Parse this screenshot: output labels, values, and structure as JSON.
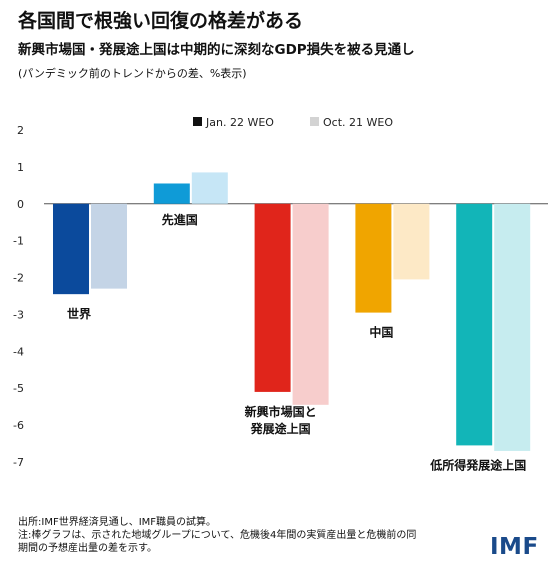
{
  "header": {
    "title": "各国間で根強い回復の格差がある",
    "subtitle": "新興市場国・発展途上国は中期的に深刻なGDP損失を被る見通し",
    "note": "(パンデミック前のトレンドからの差、%表示)"
  },
  "chart_data": {
    "type": "bar",
    "title": "各国間で根強い回復の格差がある",
    "subtitle": "新興市場国・発展途上国は中期的に深刻なGDP損失を被る見通し",
    "ylabel": "",
    "ylim": [
      -7,
      2
    ],
    "yticks": [
      2,
      1,
      0,
      -1,
      -2,
      -3,
      -4,
      -5,
      -6,
      -7
    ],
    "grid": false,
    "legend_position": "top",
    "categories": [
      {
        "label": [
          "世界"
        ],
        "label_side": "below"
      },
      {
        "label": [
          "先進国"
        ],
        "label_side": "below"
      },
      {
        "label": [
          "新興市場国と",
          "発展途上国"
        ],
        "label_side": "below"
      },
      {
        "label": [
          "中国"
        ],
        "label_side": "below"
      },
      {
        "label": [
          "低所得発展途上国"
        ],
        "label_side": "below"
      }
    ],
    "series": [
      {
        "name": "Jan. 22 WEO",
        "values": [
          -2.45,
          0.55,
          -5.1,
          -2.95,
          -6.55
        ]
      },
      {
        "name": "Oct. 21 WEO",
        "values": [
          -2.3,
          0.85,
          -5.45,
          -2.05,
          -6.7
        ]
      }
    ],
    "colors": {
      "dark": [
        "#0b4a9c",
        "#0f9bd7",
        "#e0251b",
        "#f0a500",
        "#12b5b8"
      ],
      "light": [
        "#c4d4e6",
        "#c6e6f6",
        "#f7cdcc",
        "#fde9c6",
        "#c6ecef"
      ],
      "legend": [
        "#111111",
        "#d3d3d3"
      ]
    }
  },
  "footer": {
    "source": "出所:IMF世界経済見通し、IMF職員の試算。",
    "note_line1": "注:棒グラフは、示された地域グループについて、危機後4年間の実質産出量と危機前の同",
    "note_line2": "期間の予想産出量の差を示す。"
  },
  "logo": "IMF"
}
